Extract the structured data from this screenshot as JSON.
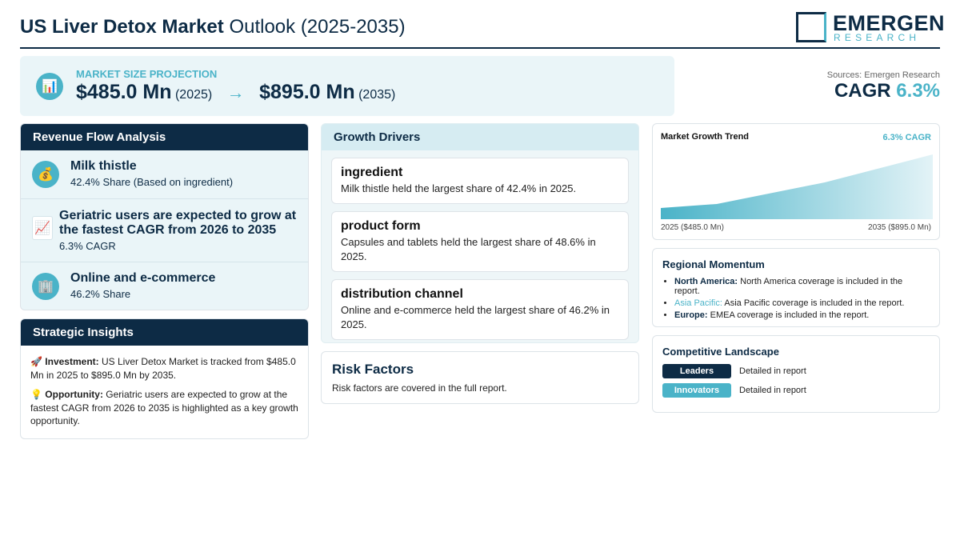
{
  "header": {
    "title_bold": "US Liver Detox Market",
    "title_rest": "Outlook (2025-2035)",
    "logo_name": "EMERGEN",
    "logo_sub": "RESEARCH"
  },
  "projection": {
    "icon": "📊",
    "label": "MARKET SIZE PROJECTION",
    "start_value": "$485.0 Mn",
    "start_year": "(2025)",
    "arrow": "→",
    "end_value": "$895.0 Mn",
    "end_year": "(2035)"
  },
  "source": {
    "text": "Sources: Emergen Research",
    "cagr_label": "CAGR",
    "cagr_value": "6.3%"
  },
  "revenue_flow": {
    "title": "Revenue Flow Analysis",
    "items": [
      {
        "icon": "💰",
        "title": "Milk thistle",
        "detail": "42.4% Share (Based on ingredient)"
      },
      {
        "icon": "📈",
        "title": "Geriatric users are expected to grow at the fastest CAGR from 2026 to 2035",
        "detail": "6.3% CAGR"
      },
      {
        "icon": "🏢",
        "title": "Online and e-commerce",
        "detail": "46.2% Share"
      }
    ]
  },
  "strategic_insights": {
    "title": "Strategic Insights",
    "items": [
      {
        "icon": "🚀",
        "label": "Investment:",
        "text": "US Liver Detox Market is tracked from $485.0 Mn in 2025 to $895.0 Mn by 2035."
      },
      {
        "icon": "💡",
        "label": "Opportunity:",
        "text": "Geriatric users are expected to grow at the fastest CAGR from 2026 to 2035 is highlighted as a key growth opportunity."
      }
    ]
  },
  "growth_drivers": {
    "title": "Growth Drivers",
    "items": [
      {
        "title": "ingredient",
        "text": "Milk thistle held the largest share of 42.4% in 2025."
      },
      {
        "title": "product form",
        "text": "Capsules and tablets held the largest share of 48.6% in 2025."
      },
      {
        "title": "distribution channel",
        "text": "Online and e-commerce held the largest share of 46.2% in 2025."
      }
    ]
  },
  "risk_factors": {
    "title": "Risk Factors",
    "text": "Risk factors are covered in the full report."
  },
  "growth_trend": {
    "title": "Market Growth Trend",
    "cagr": "6.3% CAGR",
    "start_label": "2025 ($485.0 Mn)",
    "end_label": "2035 ($895.0 Mn)"
  },
  "regional_momentum": {
    "title": "Regional Momentum",
    "items": [
      {
        "region": "North America:",
        "text": "North America coverage is included in the report."
      },
      {
        "region": "Asia Pacific:",
        "text": "Asia Pacific coverage is included in the report."
      },
      {
        "region": "Europe:",
        "text": "EMEA coverage is included in the report."
      }
    ]
  },
  "competitive_landscape": {
    "title": "Competitive Landscape",
    "items": [
      {
        "badge": "Leaders",
        "text": "Detailed in report"
      },
      {
        "badge": "Innovators",
        "text": "Detailed in report"
      }
    ]
  }
}
